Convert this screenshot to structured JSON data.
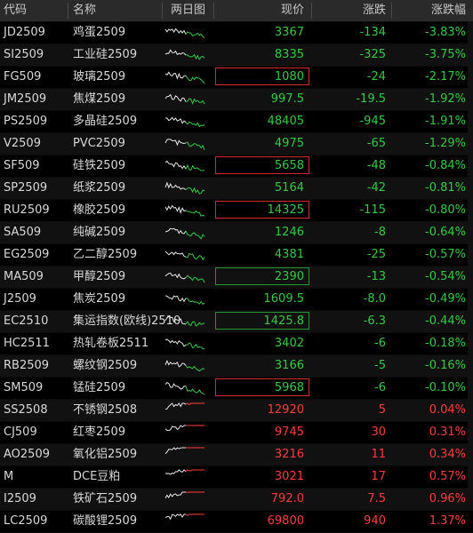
{
  "columns": {
    "code": "代码",
    "name": "名称",
    "spark": "两日图",
    "price": "现价",
    "change": "涨跌",
    "pct": "涨跌幅"
  },
  "colors": {
    "up": "#ff3b3b",
    "down": "#2ecc40",
    "neutral": "#d8d8d8"
  },
  "rows": [
    {
      "code": "JD2509",
      "name": "鸡蛋2509",
      "price": "3367",
      "change": "-134",
      "pct": "-3.83%",
      "dir": "down",
      "box": "none"
    },
    {
      "code": "SI2509",
      "name": "工业硅2509",
      "price": "8335",
      "change": "-325",
      "pct": "-3.75%",
      "dir": "down",
      "box": "none"
    },
    {
      "code": "FG509",
      "name": "玻璃2509",
      "price": "1080",
      "change": "-24",
      "pct": "-2.17%",
      "dir": "down",
      "box": "red"
    },
    {
      "code": "JM2509",
      "name": "焦煤2509",
      "price": "997.5",
      "change": "-19.5",
      "pct": "-1.92%",
      "dir": "down",
      "box": "none"
    },
    {
      "code": "PS2509",
      "name": "多晶硅2509",
      "price": "48405",
      "change": "-945",
      "pct": "-1.91%",
      "dir": "down",
      "box": "none"
    },
    {
      "code": "V2509",
      "name": "PVC2509",
      "price": "4975",
      "change": "-65",
      "pct": "-1.29%",
      "dir": "down",
      "box": "none"
    },
    {
      "code": "SF509",
      "name": "硅铁2509",
      "price": "5658",
      "change": "-48",
      "pct": "-0.84%",
      "dir": "down",
      "box": "red"
    },
    {
      "code": "SP2509",
      "name": "纸浆2509",
      "price": "5164",
      "change": "-42",
      "pct": "-0.81%",
      "dir": "down",
      "box": "none"
    },
    {
      "code": "RU2509",
      "name": "橡胶2509",
      "price": "14325",
      "change": "-115",
      "pct": "-0.80%",
      "dir": "down",
      "box": "red"
    },
    {
      "code": "SA509",
      "name": "纯碱2509",
      "price": "1246",
      "change": "-8",
      "pct": "-0.64%",
      "dir": "down",
      "box": "none"
    },
    {
      "code": "EG2509",
      "name": "乙二醇2509",
      "price": "4381",
      "change": "-25",
      "pct": "-0.57%",
      "dir": "down",
      "box": "none"
    },
    {
      "code": "MA509",
      "name": "甲醇2509",
      "price": "2390",
      "change": "-13",
      "pct": "-0.54%",
      "dir": "down",
      "box": "green"
    },
    {
      "code": "J2509",
      "name": "焦炭2509",
      "price": "1609.5",
      "change": "-8.0",
      "pct": "-0.49%",
      "dir": "down",
      "box": "none"
    },
    {
      "code": "EC2510",
      "name": "集运指数(欧线)2510",
      "price": "1425.8",
      "change": "-6.3",
      "pct": "-0.44%",
      "dir": "down",
      "box": "green"
    },
    {
      "code": "HC2511",
      "name": "热轧卷板2511",
      "price": "3402",
      "change": "-6",
      "pct": "-0.18%",
      "dir": "down",
      "box": "none"
    },
    {
      "code": "RB2509",
      "name": "螺纹钢2509",
      "price": "3166",
      "change": "-5",
      "pct": "-0.16%",
      "dir": "down",
      "box": "none"
    },
    {
      "code": "SM509",
      "name": "锰硅2509",
      "price": "5968",
      "change": "-6",
      "pct": "-0.10%",
      "dir": "down",
      "box": "red"
    },
    {
      "code": "SS2508",
      "name": "不锈钢2508",
      "price": "12920",
      "change": "5",
      "pct": "0.04%",
      "dir": "up",
      "box": "none"
    },
    {
      "code": "CJ509",
      "name": "红枣2509",
      "price": "9745",
      "change": "30",
      "pct": "0.31%",
      "dir": "up",
      "box": "none"
    },
    {
      "code": "AO2509",
      "name": "氧化铝2509",
      "price": "3216",
      "change": "11",
      "pct": "0.34%",
      "dir": "up",
      "box": "none"
    },
    {
      "code": "M",
      "name": "DCE豆粕",
      "price": "3021",
      "change": "17",
      "pct": "0.57%",
      "dir": "up",
      "box": "none"
    },
    {
      "code": "I2509",
      "name": "铁矿石2509",
      "price": "792.0",
      "change": "7.5",
      "pct": "0.96%",
      "dir": "up",
      "box": "none"
    },
    {
      "code": "LC2509",
      "name": "碳酸锂2509",
      "price": "69800",
      "change": "940",
      "pct": "1.37%",
      "dir": "up",
      "box": "none"
    }
  ]
}
